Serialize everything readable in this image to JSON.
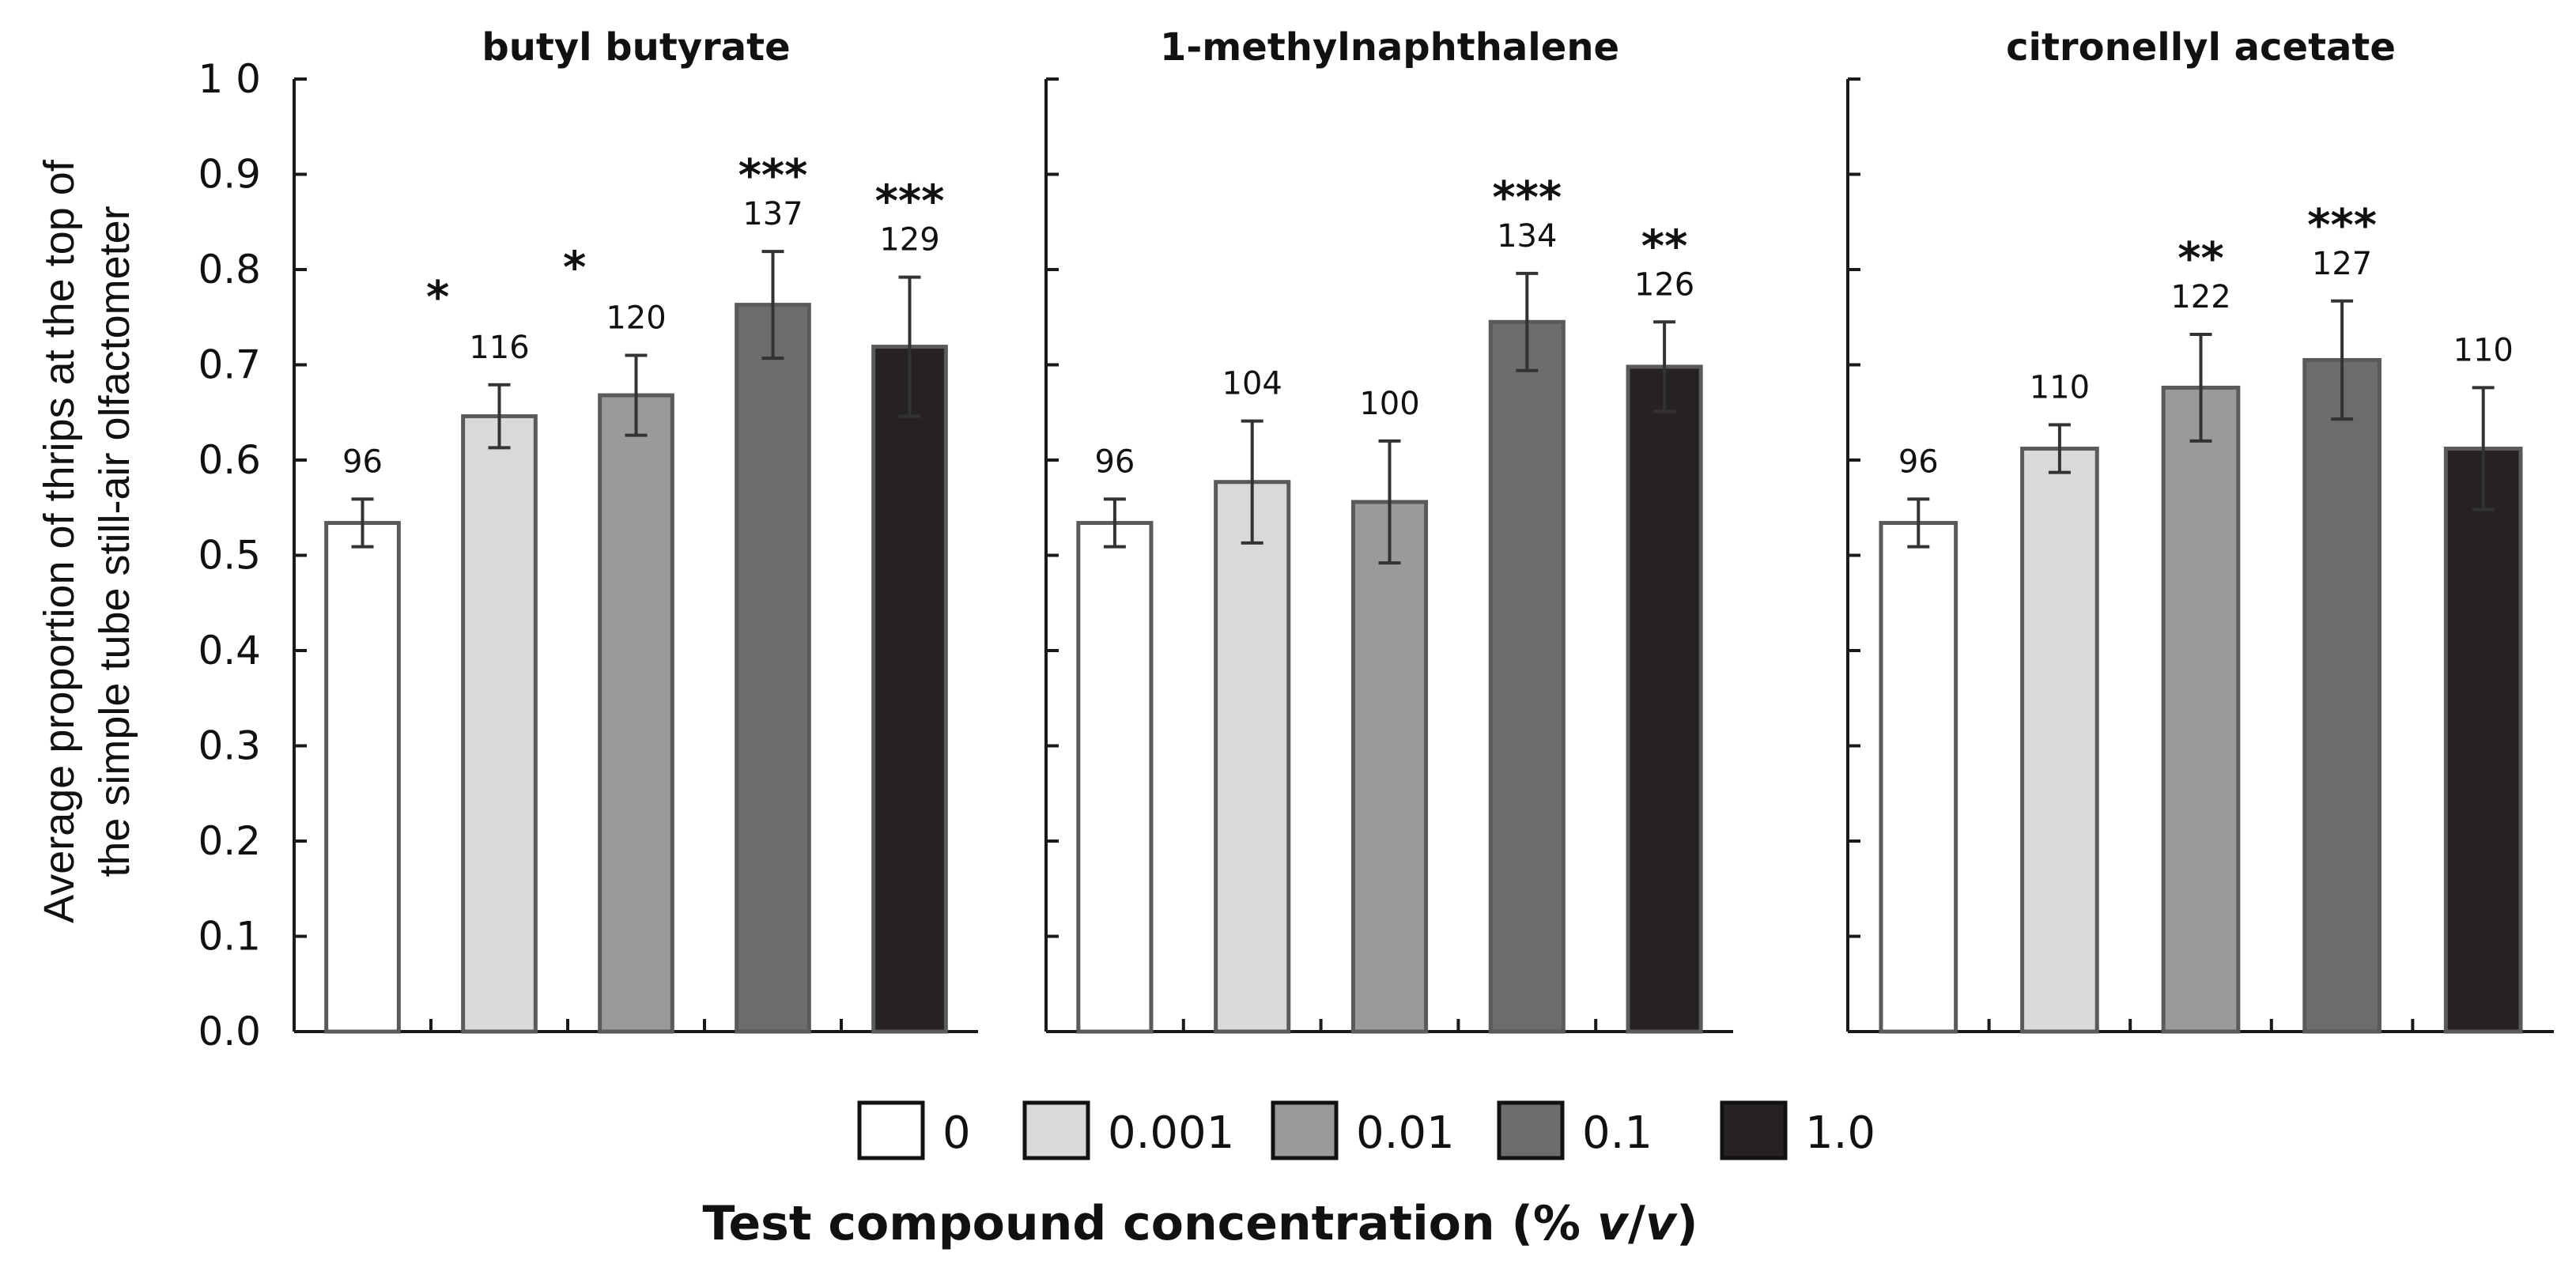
{
  "chart_data": {
    "type": "bar",
    "ylabel_lines": [
      "Average proportion of thrips at the top of",
      "the simple tube still-air olfactometer"
    ],
    "xlabel": "Test compound concentration (% v/v)",
    "xlabel_parts": [
      "Test compound concentration (% ",
      "v",
      "/",
      "v",
      ")"
    ],
    "ylim": [
      0,
      1.0
    ],
    "yticks": [
      "0.0",
      "0.1",
      "0.2",
      "0.3",
      "0.4",
      "0.5",
      "0.6",
      "0.7",
      "0.8",
      "0.9",
      "1 0"
    ],
    "categories": [
      "0",
      "0.001",
      "0.01",
      "0.1",
      "1.0"
    ],
    "colors": [
      "#ffffff",
      "#d9d9d9",
      "#9a9a9a",
      "#6c6c6c",
      "#262222"
    ],
    "panels": [
      {
        "title": "butyl butyrate",
        "values": [
          0.534,
          0.646,
          0.668,
          0.763,
          0.719
        ],
        "errors": [
          0.025,
          0.033,
          0.042,
          0.056,
          0.073
        ],
        "n": [
          "96",
          "116",
          "120",
          "137",
          "129"
        ],
        "sig": [
          "",
          "*",
          "*",
          "***",
          "***"
        ]
      },
      {
        "title": "1-methylnaphthalene",
        "values": [
          0.534,
          0.577,
          0.556,
          0.745,
          0.698
        ],
        "errors": [
          0.025,
          0.064,
          0.064,
          0.051,
          0.047
        ],
        "n": [
          "96",
          "104",
          "100",
          "134",
          "126"
        ],
        "sig": [
          "",
          "",
          "",
          "***",
          "**"
        ]
      },
      {
        "title": "citronellyl acetate",
        "values": [
          0.534,
          0.612,
          0.676,
          0.705,
          0.612
        ],
        "errors": [
          0.025,
          0.025,
          0.056,
          0.062,
          0.064
        ],
        "n": [
          "96",
          "110",
          "122",
          "127",
          "110"
        ],
        "sig": [
          "",
          "",
          "**",
          "***",
          ""
        ]
      }
    ]
  }
}
